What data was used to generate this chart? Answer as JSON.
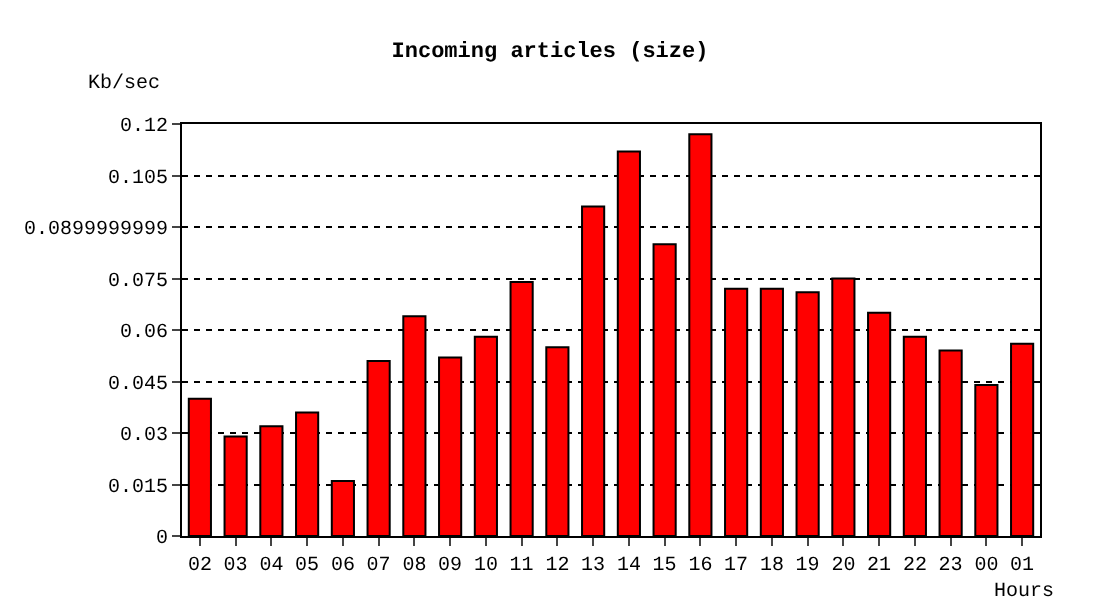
{
  "chart_data": {
    "type": "bar",
    "title": "Incoming articles (size)",
    "ylabel": "Kb/sec",
    "xlabel": "Hours",
    "categories": [
      "02",
      "03",
      "04",
      "05",
      "06",
      "07",
      "08",
      "09",
      "10",
      "11",
      "12",
      "13",
      "14",
      "15",
      "16",
      "17",
      "18",
      "19",
      "20",
      "21",
      "22",
      "23",
      "00",
      "01"
    ],
    "values": [
      0.04,
      0.029,
      0.032,
      0.036,
      0.016,
      0.051,
      0.064,
      0.052,
      0.058,
      0.074,
      0.055,
      0.096,
      0.112,
      0.085,
      0.117,
      0.072,
      0.072,
      0.071,
      0.075,
      0.065,
      0.058,
      0.054,
      0.044,
      0.056
    ],
    "color": "#ff0000",
    "ylim": [
      0,
      0.12
    ],
    "yticks": [
      0,
      0.015,
      0.03,
      0.045,
      0.06,
      0.075,
      0.0899999999,
      0.105,
      0.12
    ],
    "grid": "y"
  }
}
